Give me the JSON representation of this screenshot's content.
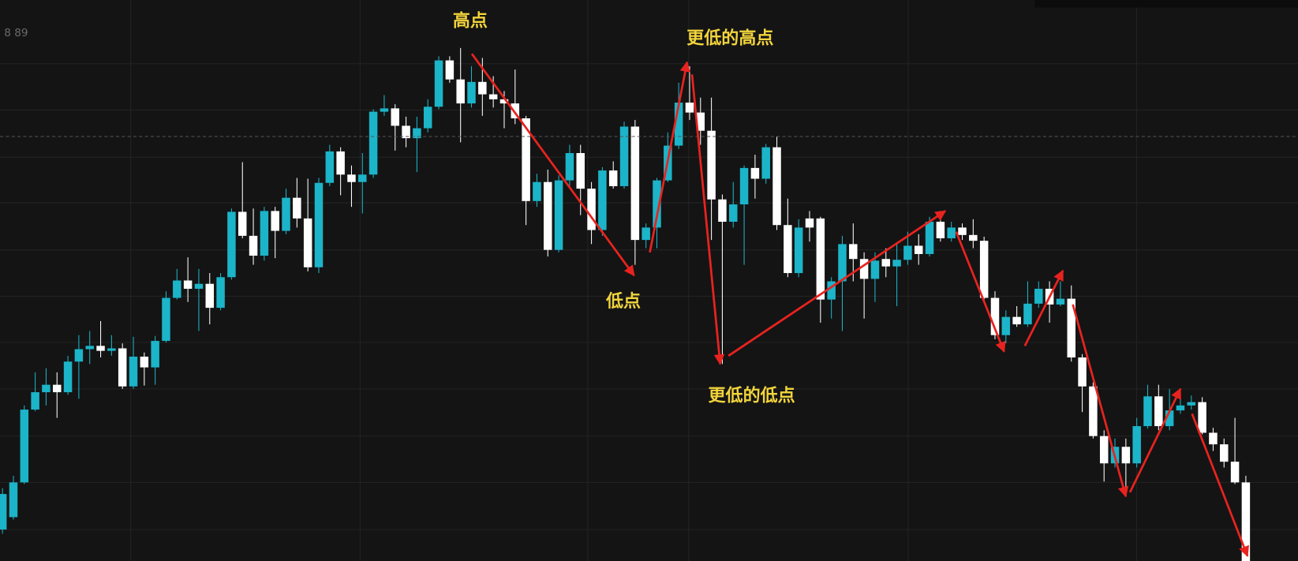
{
  "chart_data": {
    "type": "candlestick",
    "corner_label": "8 89",
    "annotations": [
      "高点",
      "更低的高点",
      "低点",
      "更低的低点"
    ],
    "up_color": "#1cb4c8",
    "down_color": "#ffffff",
    "ylim": [
      0,
      678
    ],
    "price_line": 513,
    "open": [
      38,
      53,
      95,
      183,
      204,
      213,
      204,
      241,
      256,
      260,
      254,
      257,
      211,
      247,
      234,
      266,
      318,
      339,
      329,
      335,
      306,
      343,
      422,
      393,
      369,
      423,
      399,
      439,
      414,
      355,
      457,
      495,
      467,
      458,
      467,
      543,
      547,
      526,
      511,
      523,
      549,
      605,
      582,
      553,
      579,
      564,
      558,
      553,
      535,
      435,
      458,
      376,
      460,
      493,
      450,
      400,
      472,
      453,
      525,
      388,
      403,
      460,
      502,
      554,
      542,
      520,
      437,
      410,
      431,
      475,
      462,
      500,
      406,
      348,
      414,
      414,
      316,
      338,
      383,
      365,
      341,
      365,
      356,
      364,
      381,
      371,
      410,
      390,
      403,
      394,
      387,
      318,
      273,
      295,
      286,
      311,
      329,
      310,
      317,
      246,
      211,
      151,
      118,
      138,
      118,
      163,
      199,
      163,
      182,
      188,
      192,
      155,
      141,
      120,
      95
    ],
    "high": [
      88,
      103,
      188,
      228,
      233,
      228,
      248,
      273,
      278,
      290,
      273,
      263,
      271,
      252,
      272,
      326,
      353,
      367,
      353,
      348,
      348,
      426,
      482,
      426,
      428,
      428,
      450,
      463,
      462,
      463,
      503,
      500,
      478,
      493,
      546,
      563,
      552,
      537,
      537,
      558,
      610,
      610,
      620,
      598,
      608,
      586,
      568,
      594,
      538,
      468,
      473,
      466,
      503,
      503,
      458,
      476,
      483,
      531,
      533,
      408,
      463,
      518,
      578,
      598,
      560,
      560,
      443,
      458,
      478,
      491,
      504,
      513,
      438,
      413,
      423,
      416,
      343,
      393,
      408,
      373,
      373,
      378,
      383,
      398,
      395,
      416,
      423,
      410,
      408,
      413,
      392,
      326,
      303,
      308,
      338,
      338,
      338,
      338,
      333,
      250,
      216,
      158,
      148,
      148,
      173,
      213,
      213,
      208,
      198,
      200,
      198,
      161,
      148,
      173,
      103
    ],
    "low": [
      33,
      50,
      93,
      181,
      188,
      173,
      201,
      196,
      238,
      246,
      248,
      208,
      208,
      212,
      213,
      264,
      316,
      313,
      278,
      286,
      303,
      340,
      390,
      358,
      363,
      366,
      395,
      403,
      350,
      348,
      453,
      442,
      428,
      420,
      463,
      538,
      496,
      500,
      470,
      518,
      546,
      578,
      506,
      548,
      538,
      548,
      523,
      528,
      406,
      428,
      368,
      373,
      453,
      418,
      383,
      393,
      450,
      450,
      358,
      378,
      378,
      458,
      498,
      533,
      503,
      388,
      238,
      403,
      358,
      438,
      456,
      400,
      343,
      343,
      386,
      288,
      293,
      278,
      338,
      293,
      313,
      343,
      308,
      358,
      358,
      368,
      386,
      386,
      388,
      378,
      313,
      268,
      263,
      283,
      283,
      306,
      288,
      308,
      241,
      180,
      148,
      96,
      113,
      78,
      113,
      160,
      158,
      158,
      178,
      183,
      153,
      133,
      113,
      93,
      0
    ],
    "close": [
      81,
      95,
      183,
      204,
      213,
      204,
      241,
      256,
      260,
      254,
      257,
      211,
      247,
      234,
      266,
      318,
      339,
      329,
      335,
      306,
      343,
      422,
      393,
      369,
      423,
      399,
      439,
      414,
      355,
      457,
      495,
      467,
      458,
      467,
      543,
      547,
      526,
      511,
      523,
      549,
      605,
      582,
      553,
      579,
      564,
      558,
      553,
      535,
      435,
      458,
      376,
      460,
      493,
      450,
      400,
      472,
      453,
      525,
      388,
      403,
      460,
      502,
      554,
      542,
      520,
      437,
      410,
      431,
      475,
      462,
      500,
      406,
      348,
      403,
      403,
      316,
      338,
      383,
      365,
      341,
      363,
      356,
      364,
      381,
      371,
      410,
      390,
      403,
      394,
      387,
      318,
      273,
      295,
      286,
      311,
      329,
      310,
      317,
      246,
      211,
      151,
      118,
      138,
      118,
      163,
      199,
      163,
      182,
      188,
      192,
      155,
      141,
      120,
      95,
      0
    ]
  }
}
